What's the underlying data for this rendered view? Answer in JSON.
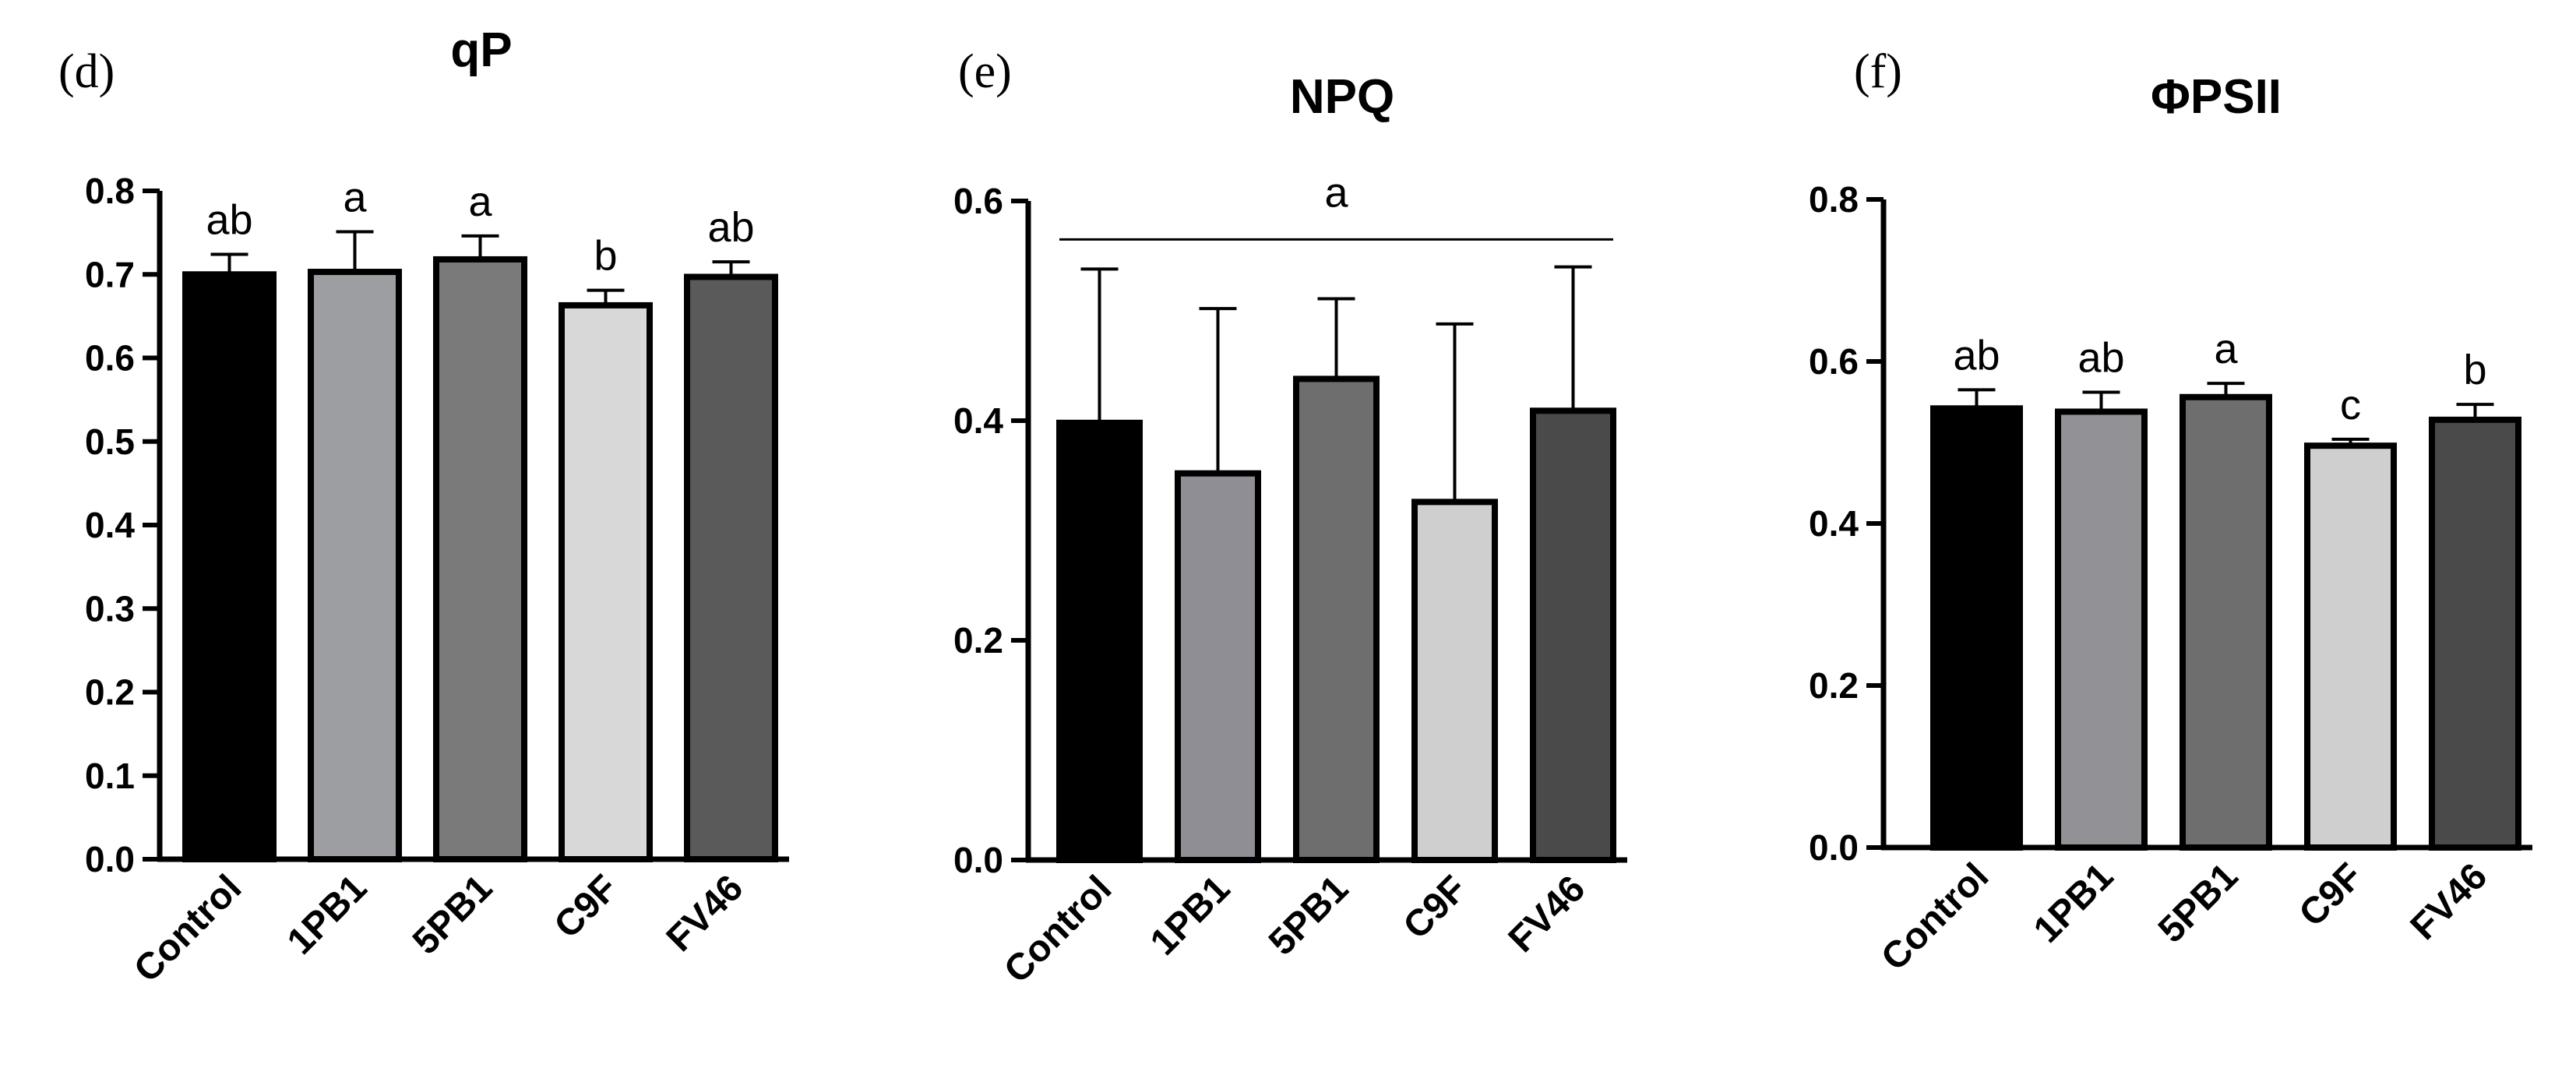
{
  "chart_data": [
    {
      "type": "bar",
      "panel": "(d)",
      "title": "qP",
      "xlabel": "",
      "ylabel": "",
      "categories": [
        "Control",
        "1PB1",
        "5PB1",
        "C9F",
        "FV46"
      ],
      "values": [
        0.7,
        0.703,
        0.718,
        0.663,
        0.697
      ],
      "errors": [
        0.024,
        0.048,
        0.028,
        0.018,
        0.018
      ],
      "significance": [
        "ab",
        "a",
        "a",
        "b",
        "ab"
      ],
      "ylim": [
        0.0,
        0.8
      ],
      "yticks": [
        0.0,
        0.1,
        0.2,
        0.3,
        0.4,
        0.5,
        0.6,
        0.7,
        0.8
      ],
      "ytick_labels": [
        "0.0",
        "0.1",
        "0.2",
        "0.3",
        "0.4",
        "0.5",
        "0.6",
        "0.7",
        "0.8"
      ],
      "colors": [
        "#000000",
        "#9d9ea1",
        "#7a7a7a",
        "#d8d8d8",
        "#5a5a5a"
      ]
    },
    {
      "type": "bar",
      "panel": "(e)",
      "title": "NPQ",
      "xlabel": "",
      "ylabel": "",
      "categories": [
        "Control",
        "1PB1",
        "5PB1",
        "C9F",
        "FV46"
      ],
      "values": [
        0.398,
        0.352,
        0.438,
        0.326,
        0.409
      ],
      "errors": [
        0.14,
        0.15,
        0.073,
        0.162,
        0.131
      ],
      "significance_line": {
        "label": "a",
        "y": 0.565
      },
      "ylim": [
        0.0,
        0.6
      ],
      "yticks": [
        0.0,
        0.2,
        0.4,
        0.6
      ],
      "ytick_labels": [
        "0.0",
        "0.2",
        "0.4",
        "0.6"
      ],
      "colors": [
        "#000000",
        "#8f8e94",
        "#6e6e6e",
        "#cfcfcf",
        "#4a4a4a"
      ]
    },
    {
      "type": "bar",
      "panel": "(f)",
      "title": "ΦPSII",
      "xlabel": "",
      "ylabel": "",
      "categories": [
        "Control",
        "1PB1",
        "5PB1",
        "C9F",
        "FV46"
      ],
      "values": [
        0.542,
        0.538,
        0.556,
        0.496,
        0.528
      ],
      "errors": [
        0.023,
        0.024,
        0.017,
        0.008,
        0.019
      ],
      "significance": [
        "ab",
        "ab",
        "a",
        "c",
        "b"
      ],
      "ylim": [
        0.0,
        0.8
      ],
      "yticks": [
        0.0,
        0.2,
        0.4,
        0.6,
        0.8
      ],
      "ytick_labels": [
        "0.0",
        "0.2",
        "0.4",
        "0.6",
        "0.8"
      ],
      "colors": [
        "#000000",
        "#929195",
        "#6e6e6e",
        "#cfcfcf",
        "#4a4a4a"
      ]
    }
  ]
}
